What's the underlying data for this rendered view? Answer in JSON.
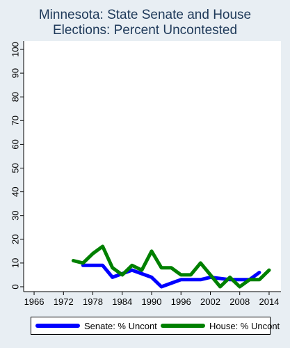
{
  "chart_data": {
    "type": "line",
    "title": [
      "Minnesota: State Senate and House",
      "Elections: Percent Uncontested"
    ],
    "xlabel": "",
    "ylabel": "",
    "xlim": [
      1965,
      2015
    ],
    "ylim": [
      0,
      100
    ],
    "xticks": [
      1966,
      1972,
      1978,
      1984,
      1990,
      1996,
      2002,
      2008,
      2014
    ],
    "yticks": [
      0,
      10,
      20,
      30,
      40,
      50,
      60,
      70,
      80,
      90,
      100
    ],
    "grid": false,
    "legend_position": "bottom",
    "series": [
      {
        "name": "Senate: % Uncont",
        "color": "#0000ff",
        "points": [
          [
            1976,
            9
          ],
          [
            1980,
            9
          ],
          [
            1982,
            4
          ],
          [
            1986,
            7
          ],
          [
            1990,
            4
          ],
          [
            1992,
            0
          ],
          [
            1996,
            3
          ],
          [
            2000,
            3
          ],
          [
            2002,
            4
          ],
          [
            2006,
            3
          ],
          [
            2010,
            3
          ],
          [
            2012,
            6
          ]
        ]
      },
      {
        "name": "House: % Uncont",
        "color": "#008000",
        "points": [
          [
            1974,
            11
          ],
          [
            1976,
            10
          ],
          [
            1978,
            14
          ],
          [
            1980,
            17
          ],
          [
            1982,
            8
          ],
          [
            1984,
            5
          ],
          [
            1986,
            9
          ],
          [
            1988,
            7
          ],
          [
            1990,
            15
          ],
          [
            1992,
            8
          ],
          [
            1994,
            8
          ],
          [
            1996,
            5
          ],
          [
            1998,
            5
          ],
          [
            2000,
            10
          ],
          [
            2002,
            5
          ],
          [
            2004,
            0
          ],
          [
            2006,
            4
          ],
          [
            2008,
            0
          ],
          [
            2010,
            3
          ],
          [
            2012,
            3
          ],
          [
            2014,
            7
          ]
        ]
      }
    ]
  }
}
